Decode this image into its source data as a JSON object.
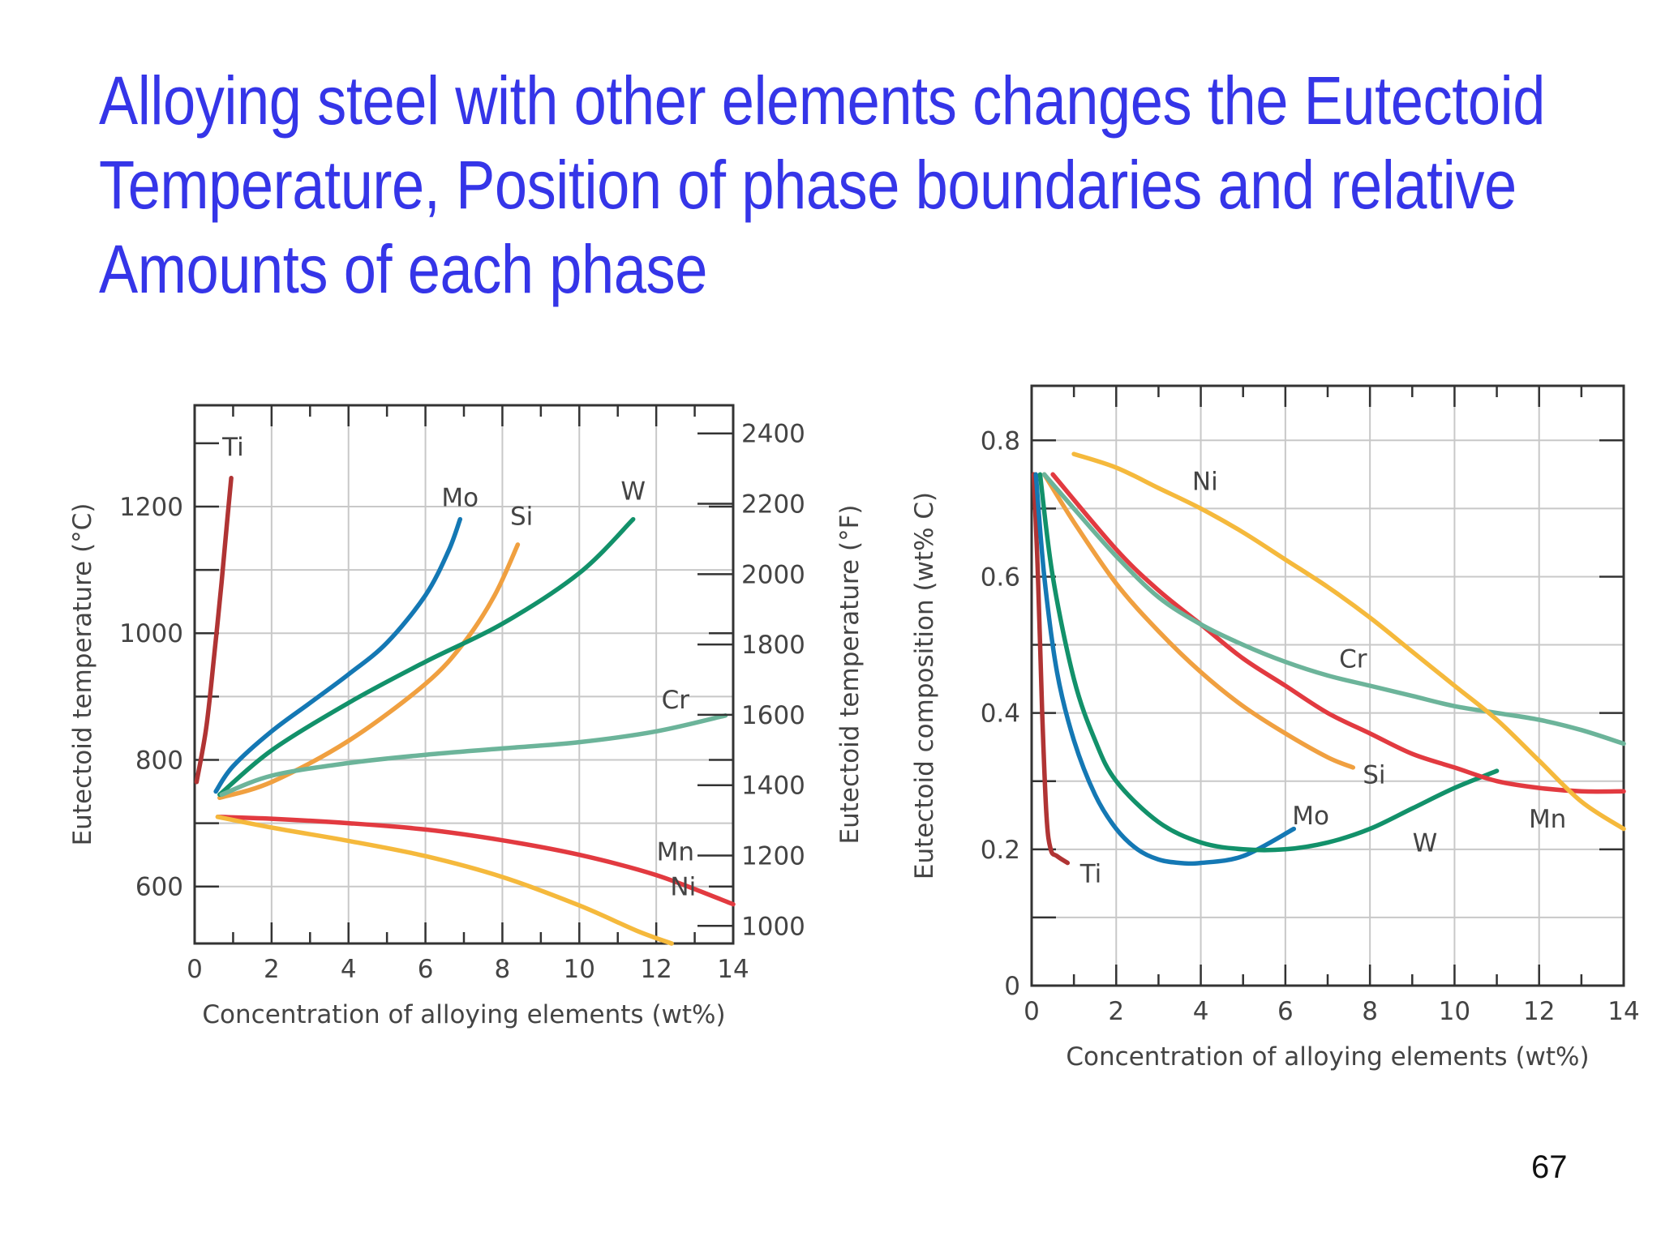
{
  "slide": {
    "title_lines": [
      "Alloying steel with other elements changes the Eutectoid",
      "Temperature, Position of phase boundaries and relative",
      "Amounts of each phase"
    ],
    "page_number": "67"
  },
  "colors": {
    "Ti": "#b03434",
    "Mo": "#1478b4",
    "Si": "#f0a040",
    "W": "#12916a",
    "Cr": "#6cb49a",
    "Mn": "#e23a40",
    "Ni": "#f5b93c",
    "axis": "#333333",
    "grid": "#c8c8c8"
  },
  "chart_data": [
    {
      "type": "line",
      "xlabel": "Concentration of alloying elements (wt%)",
      "ylabel": "Eutectoid temperature (°C)",
      "y2label": "Eutectoid temperature (°F)",
      "xlim": [
        0,
        14
      ],
      "ylim": [
        510,
        1360
      ],
      "xticks": [
        "0",
        "2",
        "4",
        "6",
        "8",
        "10",
        "12",
        "14"
      ],
      "yticks": [
        "600",
        "800",
        "1000",
        "1200"
      ],
      "y2ticks": [
        "1000",
        "1200",
        "1400",
        "1600",
        "1800",
        "2000",
        "2200",
        "2400"
      ],
      "grid": true,
      "series": [
        {
          "name": "Ti",
          "x": [
            0.05,
            0.3,
            0.5,
            0.7,
            0.85,
            0.95
          ],
          "y": [
            765,
            850,
            960,
            1080,
            1180,
            1245
          ]
        },
        {
          "name": "Mo",
          "x": [
            0.55,
            1,
            2,
            3,
            4,
            5,
            6,
            6.6,
            6.9
          ],
          "y": [
            750,
            790,
            845,
            890,
            935,
            985,
            1060,
            1130,
            1180
          ]
        },
        {
          "name": "Si",
          "x": [
            0.65,
            2,
            4,
            6,
            7,
            7.8,
            8.4
          ],
          "y": [
            740,
            765,
            830,
            920,
            985,
            1060,
            1140
          ]
        },
        {
          "name": "W",
          "x": [
            0.65,
            2,
            4,
            6,
            8,
            10,
            11.4
          ],
          "y": [
            745,
            815,
            890,
            955,
            1015,
            1095,
            1180
          ]
        },
        {
          "name": "Cr",
          "x": [
            0.7,
            2,
            4,
            6,
            8,
            10,
            12,
            13.8
          ],
          "y": [
            745,
            775,
            795,
            808,
            818,
            828,
            845,
            870
          ]
        },
        {
          "name": "Mn",
          "x": [
            0.6,
            2,
            4,
            6,
            8,
            10,
            12,
            14
          ],
          "y": [
            710,
            707,
            700,
            690,
            673,
            650,
            618,
            572
          ]
        },
        {
          "name": "Ni",
          "x": [
            0.6,
            2,
            4,
            6,
            8,
            10,
            11.5,
            12.4
          ],
          "y": [
            710,
            693,
            672,
            648,
            615,
            570,
            530,
            510
          ]
        }
      ],
      "annotations": [
        {
          "text": "Ti",
          "x": 1.0,
          "y": 1295
        },
        {
          "text": "Mo",
          "x": 6.9,
          "y": 1215
        },
        {
          "text": "Si",
          "x": 8.5,
          "y": 1185
        },
        {
          "text": "W",
          "x": 11.4,
          "y": 1225
        },
        {
          "text": "Cr",
          "x": 12.5,
          "y": 895
        },
        {
          "text": "Mn",
          "x": 12.5,
          "y": 655
        },
        {
          "text": "Ni",
          "x": 12.7,
          "y": 600
        }
      ]
    },
    {
      "type": "line",
      "xlabel": "Concentration of alloying elements (wt%)",
      "ylabel": "Eutectoid composition (wt% C)",
      "xlim": [
        0,
        14
      ],
      "ylim": [
        0,
        0.88
      ],
      "xticks": [
        "0",
        "2",
        "4",
        "6",
        "8",
        "10",
        "12",
        "14"
      ],
      "yticks": [
        "0",
        "0.2",
        "0.4",
        "0.6",
        "0.8"
      ],
      "grid": true,
      "series": [
        {
          "name": "Ti",
          "x": [
            0.05,
            0.15,
            0.25,
            0.35,
            0.45,
            0.6,
            0.85
          ],
          "y": [
            0.75,
            0.6,
            0.4,
            0.25,
            0.2,
            0.19,
            0.18
          ]
        },
        {
          "name": "Mo",
          "x": [
            0.1,
            0.3,
            0.6,
            1,
            1.5,
            2,
            2.5,
            3,
            3.5,
            4,
            5,
            6.2
          ],
          "y": [
            0.75,
            0.6,
            0.46,
            0.36,
            0.28,
            0.23,
            0.2,
            0.185,
            0.18,
            0.18,
            0.19,
            0.23
          ]
        },
        {
          "name": "W",
          "x": [
            0.2,
            0.5,
            1,
            1.5,
            2,
            3,
            4,
            5,
            6,
            7,
            8,
            9,
            10,
            11
          ],
          "y": [
            0.75,
            0.6,
            0.45,
            0.36,
            0.3,
            0.24,
            0.21,
            0.2,
            0.2,
            0.21,
            0.23,
            0.26,
            0.29,
            0.315
          ]
        },
        {
          "name": "Si",
          "x": [
            0.3,
            1,
            2,
            3,
            4,
            5,
            6,
            7,
            7.6
          ],
          "y": [
            0.75,
            0.68,
            0.59,
            0.52,
            0.46,
            0.41,
            0.37,
            0.335,
            0.32
          ]
        },
        {
          "name": "Mn",
          "x": [
            0.5,
            2,
            3,
            4,
            5,
            6,
            7,
            8,
            9,
            10,
            11,
            12,
            13,
            14
          ],
          "y": [
            0.75,
            0.64,
            0.58,
            0.53,
            0.48,
            0.44,
            0.4,
            0.37,
            0.34,
            0.32,
            0.3,
            0.29,
            0.285,
            0.285
          ]
        },
        {
          "name": "Cr",
          "x": [
            0.3,
            1,
            2,
            3,
            4,
            5,
            6,
            7,
            8,
            9,
            10,
            11,
            12,
            13,
            14
          ],
          "y": [
            0.75,
            0.7,
            0.63,
            0.57,
            0.53,
            0.5,
            0.475,
            0.455,
            0.44,
            0.425,
            0.41,
            0.4,
            0.39,
            0.375,
            0.355
          ]
        },
        {
          "name": "Ni",
          "x": [
            1,
            2,
            3,
            4,
            5,
            6,
            7,
            8,
            9,
            10,
            11,
            12,
            13,
            14
          ],
          "y": [
            0.78,
            0.76,
            0.73,
            0.7,
            0.665,
            0.625,
            0.585,
            0.54,
            0.49,
            0.44,
            0.39,
            0.33,
            0.27,
            0.23
          ]
        }
      ],
      "annotations": [
        {
          "text": "Ni",
          "x": 4.1,
          "y": 0.74
        },
        {
          "text": "Cr",
          "x": 7.6,
          "y": 0.48
        },
        {
          "text": "Si",
          "x": 8.1,
          "y": 0.31
        },
        {
          "text": "Mo",
          "x": 6.6,
          "y": 0.25
        },
        {
          "text": "W",
          "x": 9.3,
          "y": 0.21
        },
        {
          "text": "Mn",
          "x": 12.2,
          "y": 0.245
        },
        {
          "text": "Ti",
          "x": 1.4,
          "y": 0.165
        }
      ]
    }
  ]
}
